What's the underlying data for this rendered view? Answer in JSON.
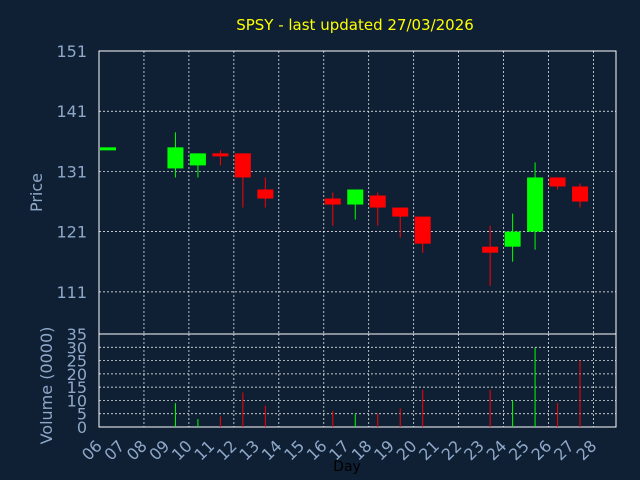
{
  "chart_data": {
    "type": "candlestick",
    "title": "SPSY - last updated 27/03/2026",
    "xlabel": "Day",
    "price_panel": {
      "ylabel": "Price",
      "ylim": [
        104,
        151
      ],
      "yticks": [
        111,
        121,
        131,
        141,
        151
      ],
      "grid": true
    },
    "volume_panel": {
      "ylabel": "Volume (0000)",
      "ylim": [
        0,
        35
      ],
      "yticks": [
        0,
        5,
        10,
        15,
        20,
        25,
        30,
        35
      ],
      "grid": true
    },
    "x_ticks": [
      "06",
      "07",
      "08",
      "09",
      "10",
      "11",
      "12",
      "13",
      "14",
      "15",
      "16",
      "17",
      "18",
      "19",
      "20",
      "21",
      "22",
      "23",
      "24",
      "25",
      "26",
      "27",
      "28"
    ],
    "candles": [
      {
        "day": "06",
        "open": 135,
        "high": 135,
        "low": 135,
        "close": 135,
        "volume": 0
      },
      {
        "day": "09",
        "open": 131.5,
        "high": 137.5,
        "low": 130,
        "close": 135,
        "volume": 9
      },
      {
        "day": "10",
        "open": 132,
        "high": 134,
        "low": 130,
        "close": 134,
        "volume": 3
      },
      {
        "day": "11",
        "open": 134,
        "high": 134.5,
        "low": 132,
        "close": 133.5,
        "volume": 4
      },
      {
        "day": "12",
        "open": 134,
        "high": 134,
        "low": 125,
        "close": 130,
        "volume": 13
      },
      {
        "day": "13",
        "open": 128,
        "high": 130,
        "low": 125,
        "close": 126.5,
        "volume": 8
      },
      {
        "day": "16",
        "open": 126.5,
        "high": 127.5,
        "low": 122,
        "close": 125.5,
        "volume": 6
      },
      {
        "day": "17",
        "open": 125.5,
        "high": 128,
        "low": 123,
        "close": 128,
        "volume": 5
      },
      {
        "day": "18",
        "open": 127,
        "high": 127.5,
        "low": 122,
        "close": 125,
        "volume": 5
      },
      {
        "day": "19",
        "open": 125,
        "high": 125,
        "low": 120,
        "close": 123.5,
        "volume": 7
      },
      {
        "day": "20",
        "open": 123.5,
        "high": 123.5,
        "low": 117.5,
        "close": 119,
        "volume": 14
      },
      {
        "day": "23",
        "open": 118.5,
        "high": 122,
        "low": 112,
        "close": 117.5,
        "volume": 14
      },
      {
        "day": "24",
        "open": 118.5,
        "high": 124,
        "low": 116,
        "close": 121,
        "volume": 10
      },
      {
        "day": "25",
        "open": 121,
        "high": 132.5,
        "low": 118,
        "close": 130,
        "volume": 30
      },
      {
        "day": "26",
        "open": 130,
        "high": 130,
        "low": 128,
        "close": 128.5,
        "volume": 9
      },
      {
        "day": "27",
        "open": 128.5,
        "high": 129,
        "low": 125,
        "close": 126,
        "volume": 25
      }
    ],
    "colors": {
      "background": "#0f2035",
      "up": "#00ff00",
      "down": "#ff0000",
      "axis": "#ffffff",
      "grid": "#ffffff",
      "title": "#ffff00",
      "label": "#8fa8c8"
    }
  }
}
